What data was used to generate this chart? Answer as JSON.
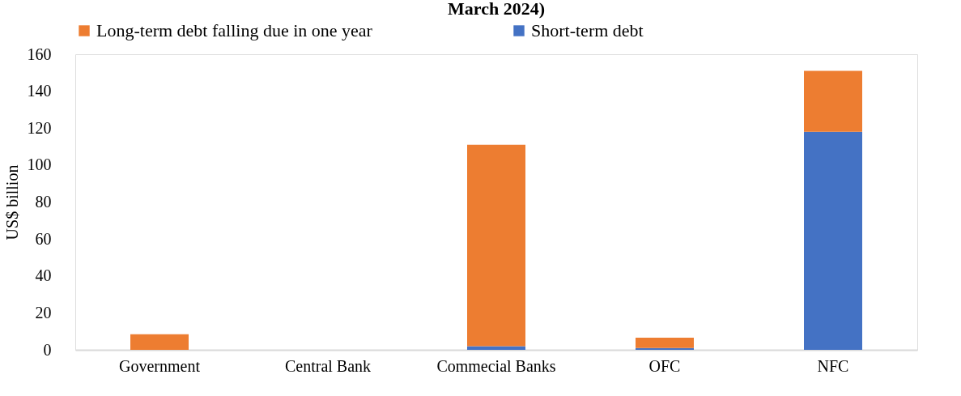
{
  "chart_data": {
    "type": "bar",
    "title": "March 2024)",
    "ylabel": "US$ billion",
    "stacked": true,
    "legend": "top",
    "grid": false,
    "categories": [
      "Government",
      "Central Bank",
      "Commecial Banks",
      "OFC",
      "NFC"
    ],
    "series": [
      {
        "name": "Short-term debt",
        "color": "#4472c4",
        "values": [
          0,
          0,
          2,
          1,
          118
        ]
      },
      {
        "name": "Long-term debt falling due in one year",
        "color": "#ed7d31",
        "values": [
          8.4,
          0,
          109,
          5.6,
          33
        ]
      }
    ],
    "ylim": [
      0,
      160
    ],
    "yticks": [
      0,
      20,
      40,
      60,
      80,
      100,
      120,
      140,
      160
    ]
  }
}
